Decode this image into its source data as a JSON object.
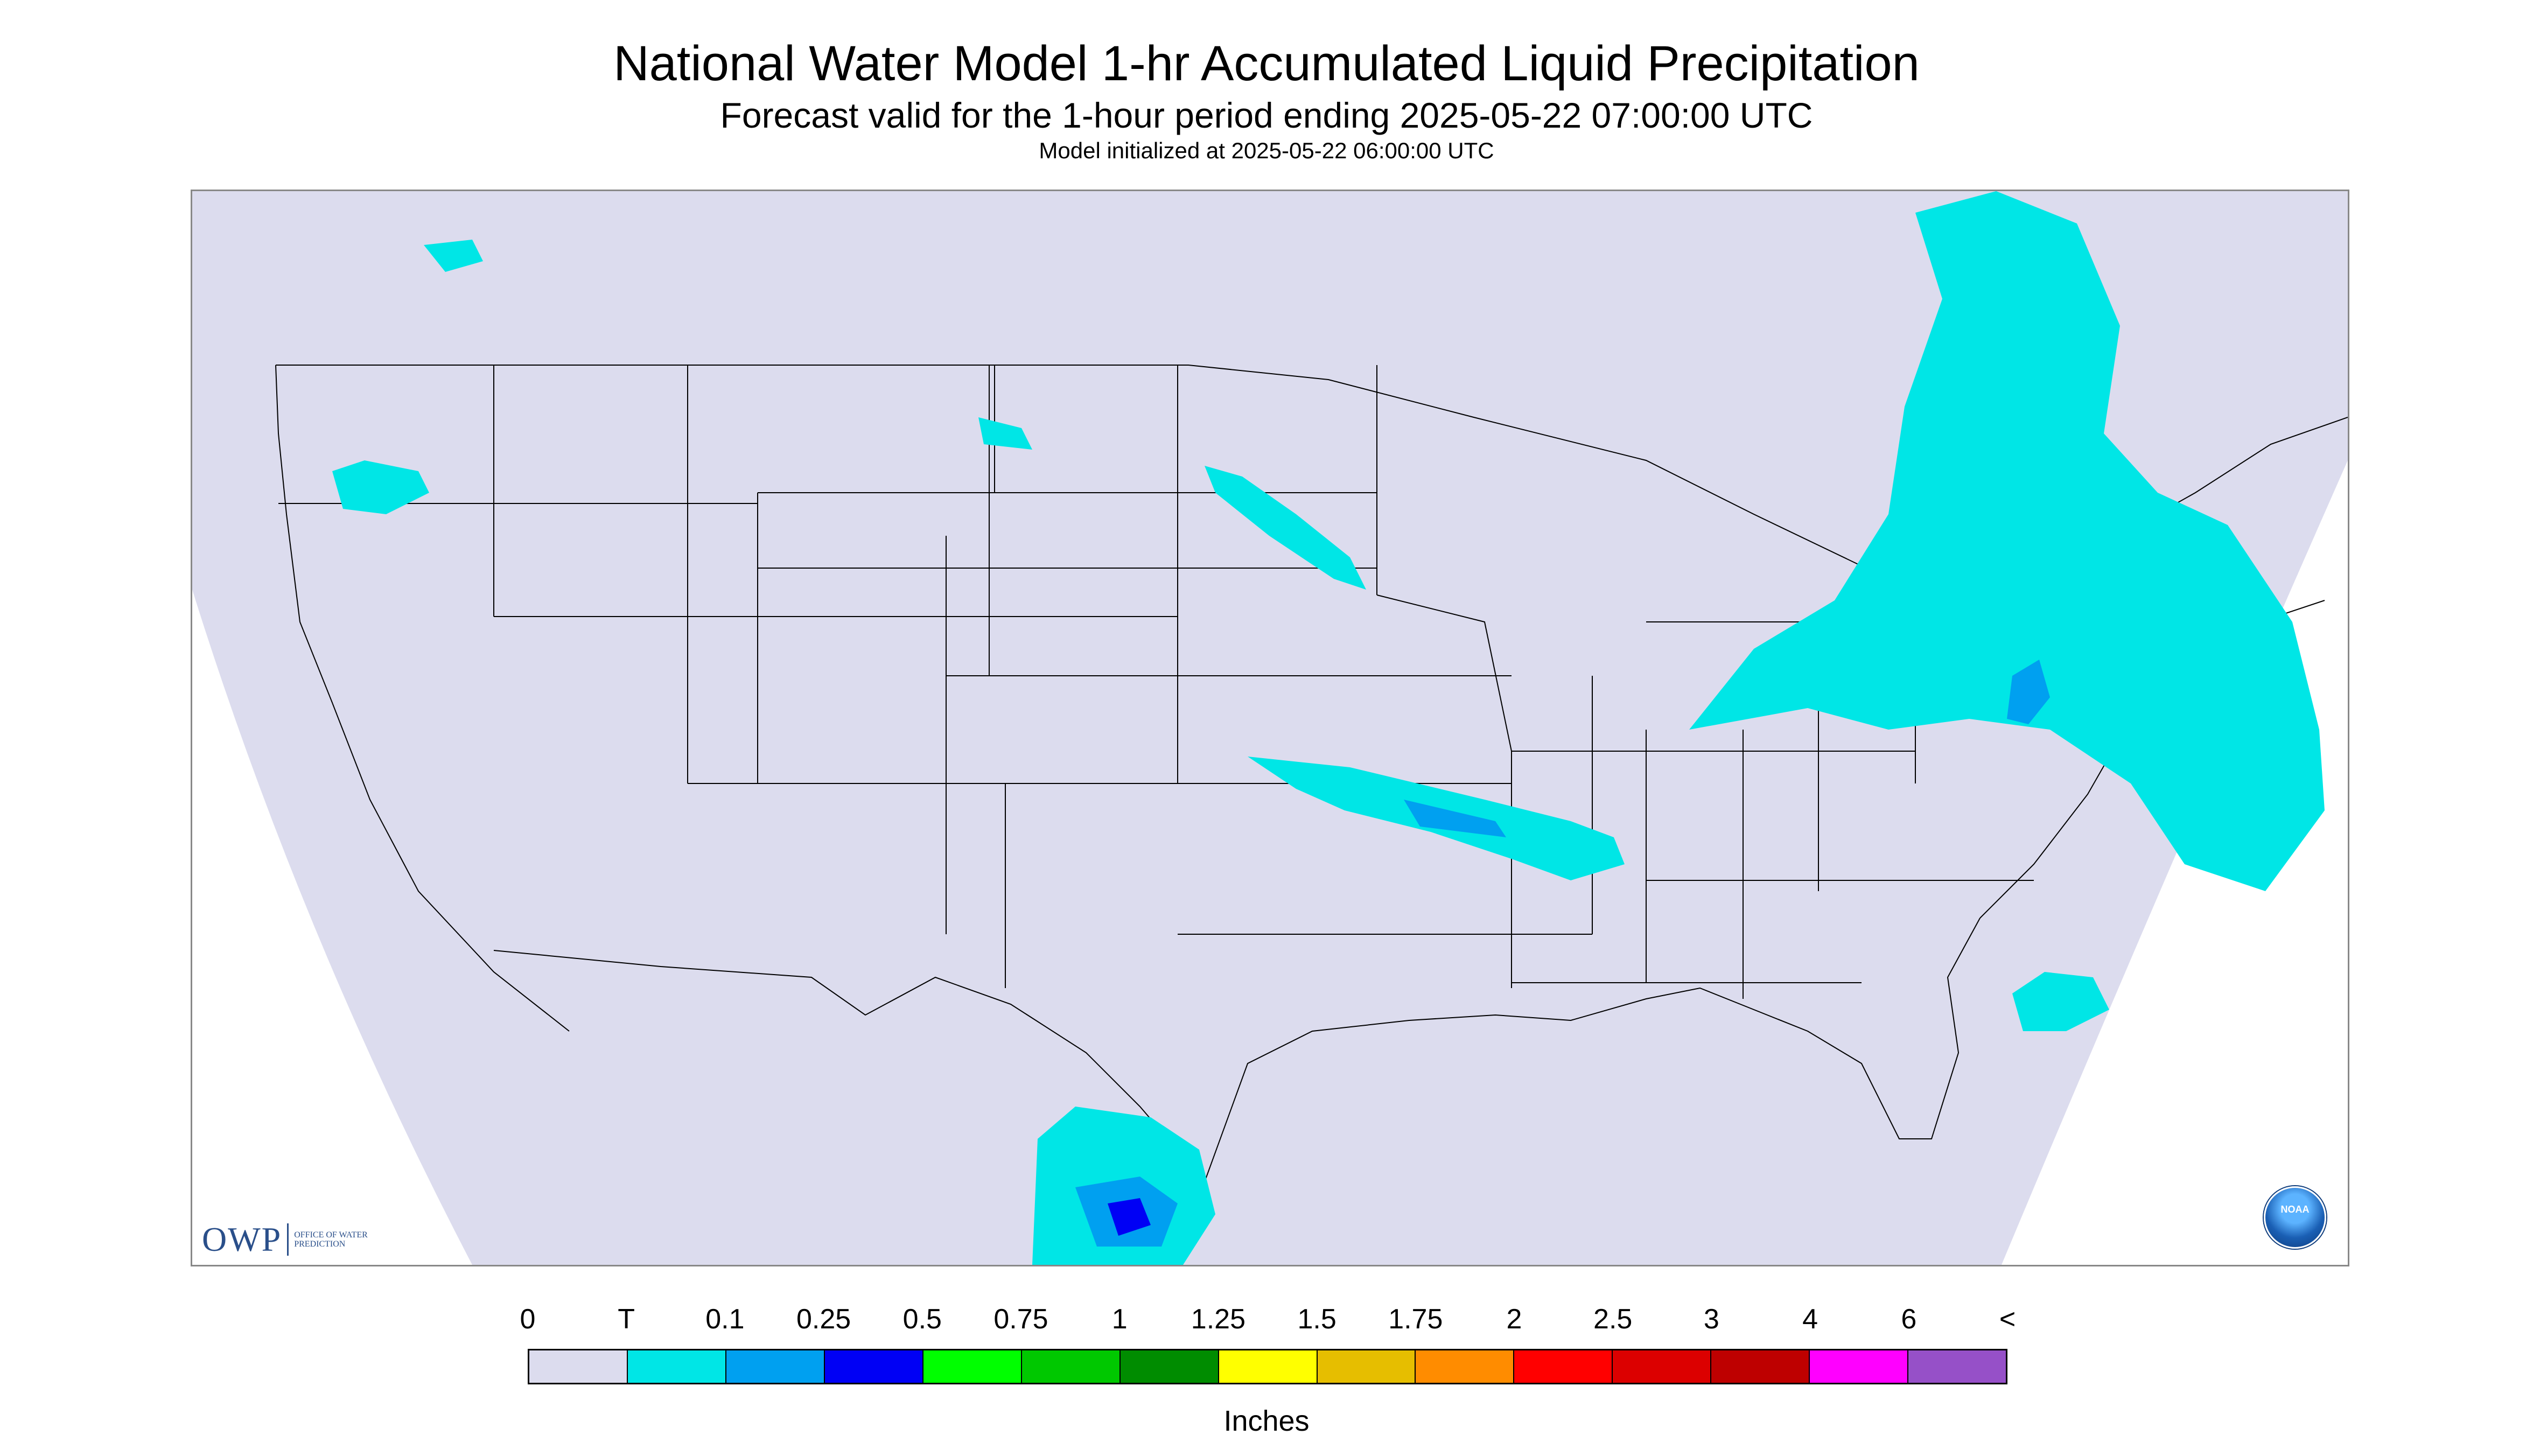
{
  "title": "National Water Model 1-hr Accumulated Liquid Precipitation",
  "subtitle": "Forecast valid for the 1-hour period ending 2025-05-22 07:00:00 UTC",
  "init_text": "Model initialized at 2025-05-22 06:00:00 UTC",
  "logos": {
    "owp_big": "OWP",
    "owp_small": "OFFICE OF WATER PREDICTION",
    "noaa": "NOAA"
  },
  "legend": {
    "units": "Inches",
    "tick_labels": [
      "0",
      "T",
      "0.1",
      "0.25",
      "0.5",
      "0.75",
      "1",
      "1.25",
      "1.5",
      "1.75",
      "2",
      "2.5",
      "3",
      "4",
      "6",
      "<"
    ],
    "colors": [
      "#dcdcee",
      "#00e6e6",
      "#00a0f0",
      "#0000f5",
      "#00ff00",
      "#00c800",
      "#008c00",
      "#ffff00",
      "#e6be00",
      "#ff8c00",
      "#ff0000",
      "#dc0000",
      "#be0000",
      "#ff00ff",
      "#9650c8"
    ]
  },
  "map_colors": {
    "background": "#dcdcee",
    "outside_domain": "#ffffff",
    "trace": "#00e6e6",
    "light": "#00a0f0",
    "moderate": "#0000f5",
    "boundary": "#000000"
  }
}
